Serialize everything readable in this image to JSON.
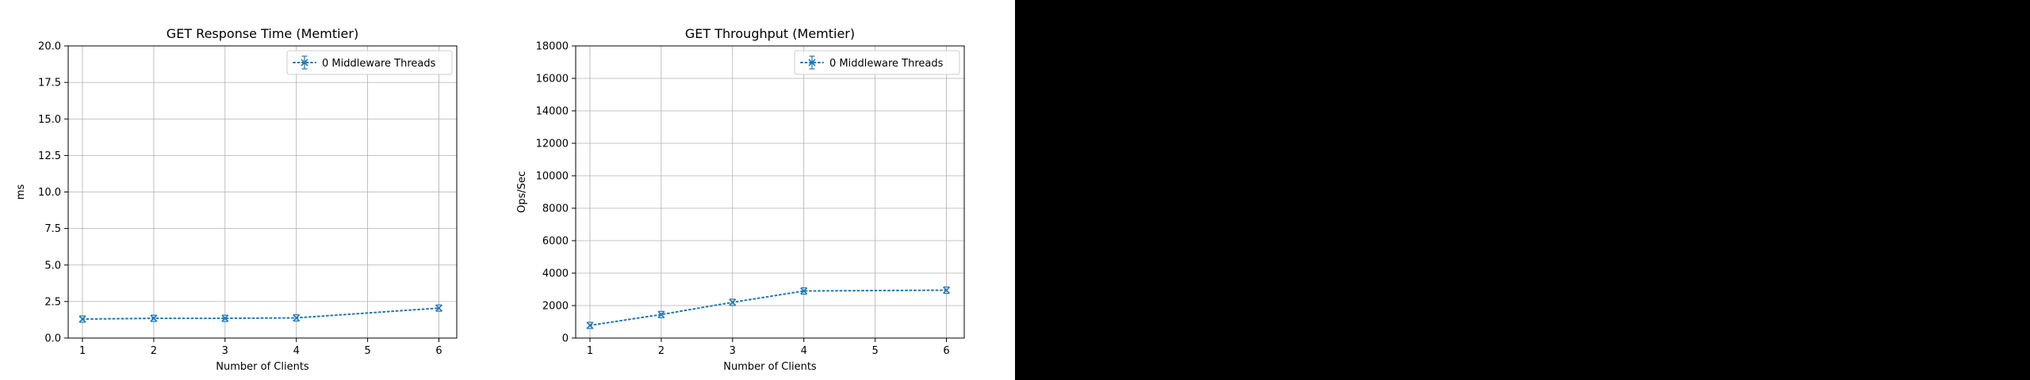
{
  "figure": {
    "background": "#ffffff",
    "right_panel_color": "#000000"
  },
  "chart_data": [
    {
      "type": "line",
      "title": "GET Response Time (Memtier)",
      "xlabel": "Number of Clients",
      "ylabel": "ms",
      "xlim": [
        0.8,
        6.25
      ],
      "ylim": [
        0,
        20
      ],
      "xticks": [
        1,
        2,
        3,
        4,
        5,
        6
      ],
      "yticks": [
        0.0,
        2.5,
        5.0,
        7.5,
        10.0,
        12.5,
        15.0,
        17.5,
        20.0
      ],
      "ytick_labels": [
        "0.0",
        "2.5",
        "5.0",
        "7.5",
        "10.0",
        "12.5",
        "15.0",
        "17.5",
        "20.0"
      ],
      "grid": true,
      "legend": "top-right",
      "line_style": "dotted",
      "marker": "x with errorbar caps",
      "series": [
        {
          "name": "0 Middleware Threads",
          "color": "#1f77b4",
          "x": [
            1,
            2,
            3,
            4,
            6
          ],
          "y": [
            1.3,
            1.35,
            1.35,
            1.38,
            2.05
          ]
        }
      ]
    },
    {
      "type": "line",
      "title": "GET Throughput (Memtier)",
      "xlabel": "Number of Clients",
      "ylabel": "Ops/Sec",
      "xlim": [
        0.8,
        6.25
      ],
      "ylim": [
        0,
        18000
      ],
      "xticks": [
        1,
        2,
        3,
        4,
        5,
        6
      ],
      "yticks": [
        0,
        2000,
        4000,
        6000,
        8000,
        10000,
        12000,
        14000,
        16000,
        18000
      ],
      "ytick_labels": [
        "0",
        "2000",
        "4000",
        "6000",
        "8000",
        "10000",
        "12000",
        "14000",
        "16000",
        "18000"
      ],
      "grid": true,
      "legend": "top-right",
      "line_style": "dotted",
      "marker": "x with errorbar caps",
      "series": [
        {
          "name": "0 Middleware Threads",
          "color": "#1f77b4",
          "x": [
            1,
            2,
            3,
            4,
            6
          ],
          "y": [
            780,
            1450,
            2200,
            2900,
            2950
          ]
        }
      ]
    }
  ]
}
